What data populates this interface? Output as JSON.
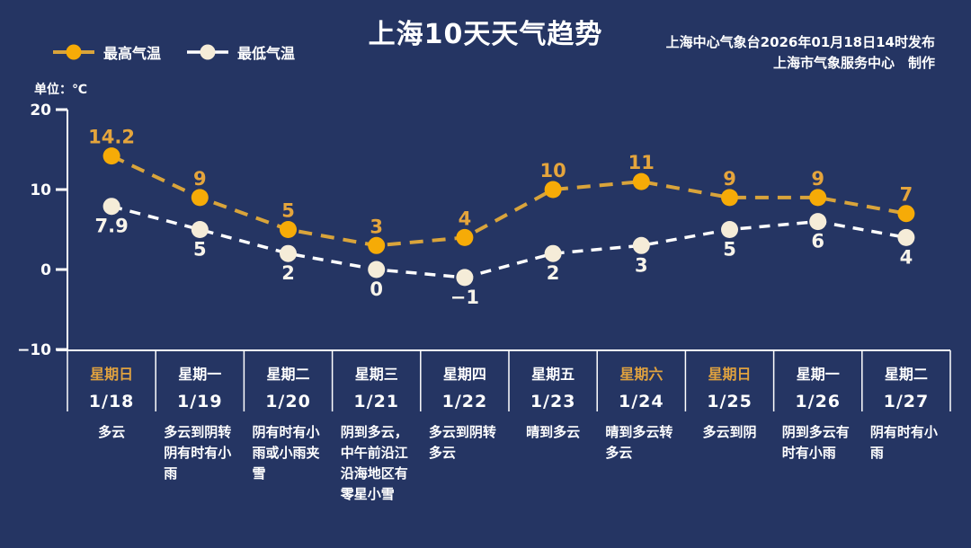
{
  "header": {
    "title": "上海10天天气趋势",
    "publisher_line1": "上海中心气象台2026年01月18日14时发布",
    "publisher_line2": "上海市气象服务中心　制作",
    "unit_label": "单位：℃"
  },
  "legend": {
    "high_label": "最高气温",
    "low_label": "最低气温"
  },
  "colors": {
    "background": "#253563",
    "high_line": "#d9a43b",
    "high_dot": "#f6ab07",
    "high_text": "#e5a53c",
    "low_line": "#ffffff",
    "low_dot": "#f5ecd8",
    "low_text": "#f8f4ea",
    "axis": "#ffffff",
    "weekend_text": "#e0a23f",
    "weekday_text": "#ffffff"
  },
  "chart_data": {
    "type": "line",
    "title": "上海10天天气趋势",
    "ylabel": "单位：℃",
    "categories": [
      "1/18",
      "1/19",
      "1/20",
      "1/21",
      "1/22",
      "1/23",
      "1/24",
      "1/25",
      "1/26",
      "1/27"
    ],
    "series": [
      {
        "name": "最高气温",
        "values": [
          14.2,
          9,
          5,
          3,
          4,
          10,
          11,
          9,
          9,
          7
        ]
      },
      {
        "name": "最低气温",
        "values": [
          7.9,
          5,
          2,
          0,
          -1,
          2,
          3,
          5,
          6,
          4
        ]
      }
    ],
    "yticks": [
      20,
      10,
      0,
      -10
    ],
    "ylim": [
      -10,
      20
    ],
    "grid": false,
    "line_style": "dashed",
    "legend_position": "top-left"
  },
  "days": [
    {
      "week": "星期日",
      "date": "1/18",
      "weather": "多云",
      "weekend": true
    },
    {
      "week": "星期一",
      "date": "1/19",
      "weather": "多云到阴转阴有时有小雨",
      "weekend": false
    },
    {
      "week": "星期二",
      "date": "1/20",
      "weather": "阴有时有小雨或小雨夹雪",
      "weekend": false
    },
    {
      "week": "星期三",
      "date": "1/21",
      "weather": "阴到多云，中午前沿江沿海地区有零星小雪",
      "weekend": false
    },
    {
      "week": "星期四",
      "date": "1/22",
      "weather": "多云到阴转多云",
      "weekend": false
    },
    {
      "week": "星期五",
      "date": "1/23",
      "weather": "晴到多云",
      "weekend": false
    },
    {
      "week": "星期六",
      "date": "1/24",
      "weather": "晴到多云转多云",
      "weekend": true
    },
    {
      "week": "星期日",
      "date": "1/25",
      "weather": "多云到阴",
      "weekend": true
    },
    {
      "week": "星期一",
      "date": "1/26",
      "weather": "阴到多云有时有小雨",
      "weekend": false
    },
    {
      "week": "星期二",
      "date": "1/27",
      "weather": "阴有时有小雨",
      "weekend": false
    }
  ]
}
